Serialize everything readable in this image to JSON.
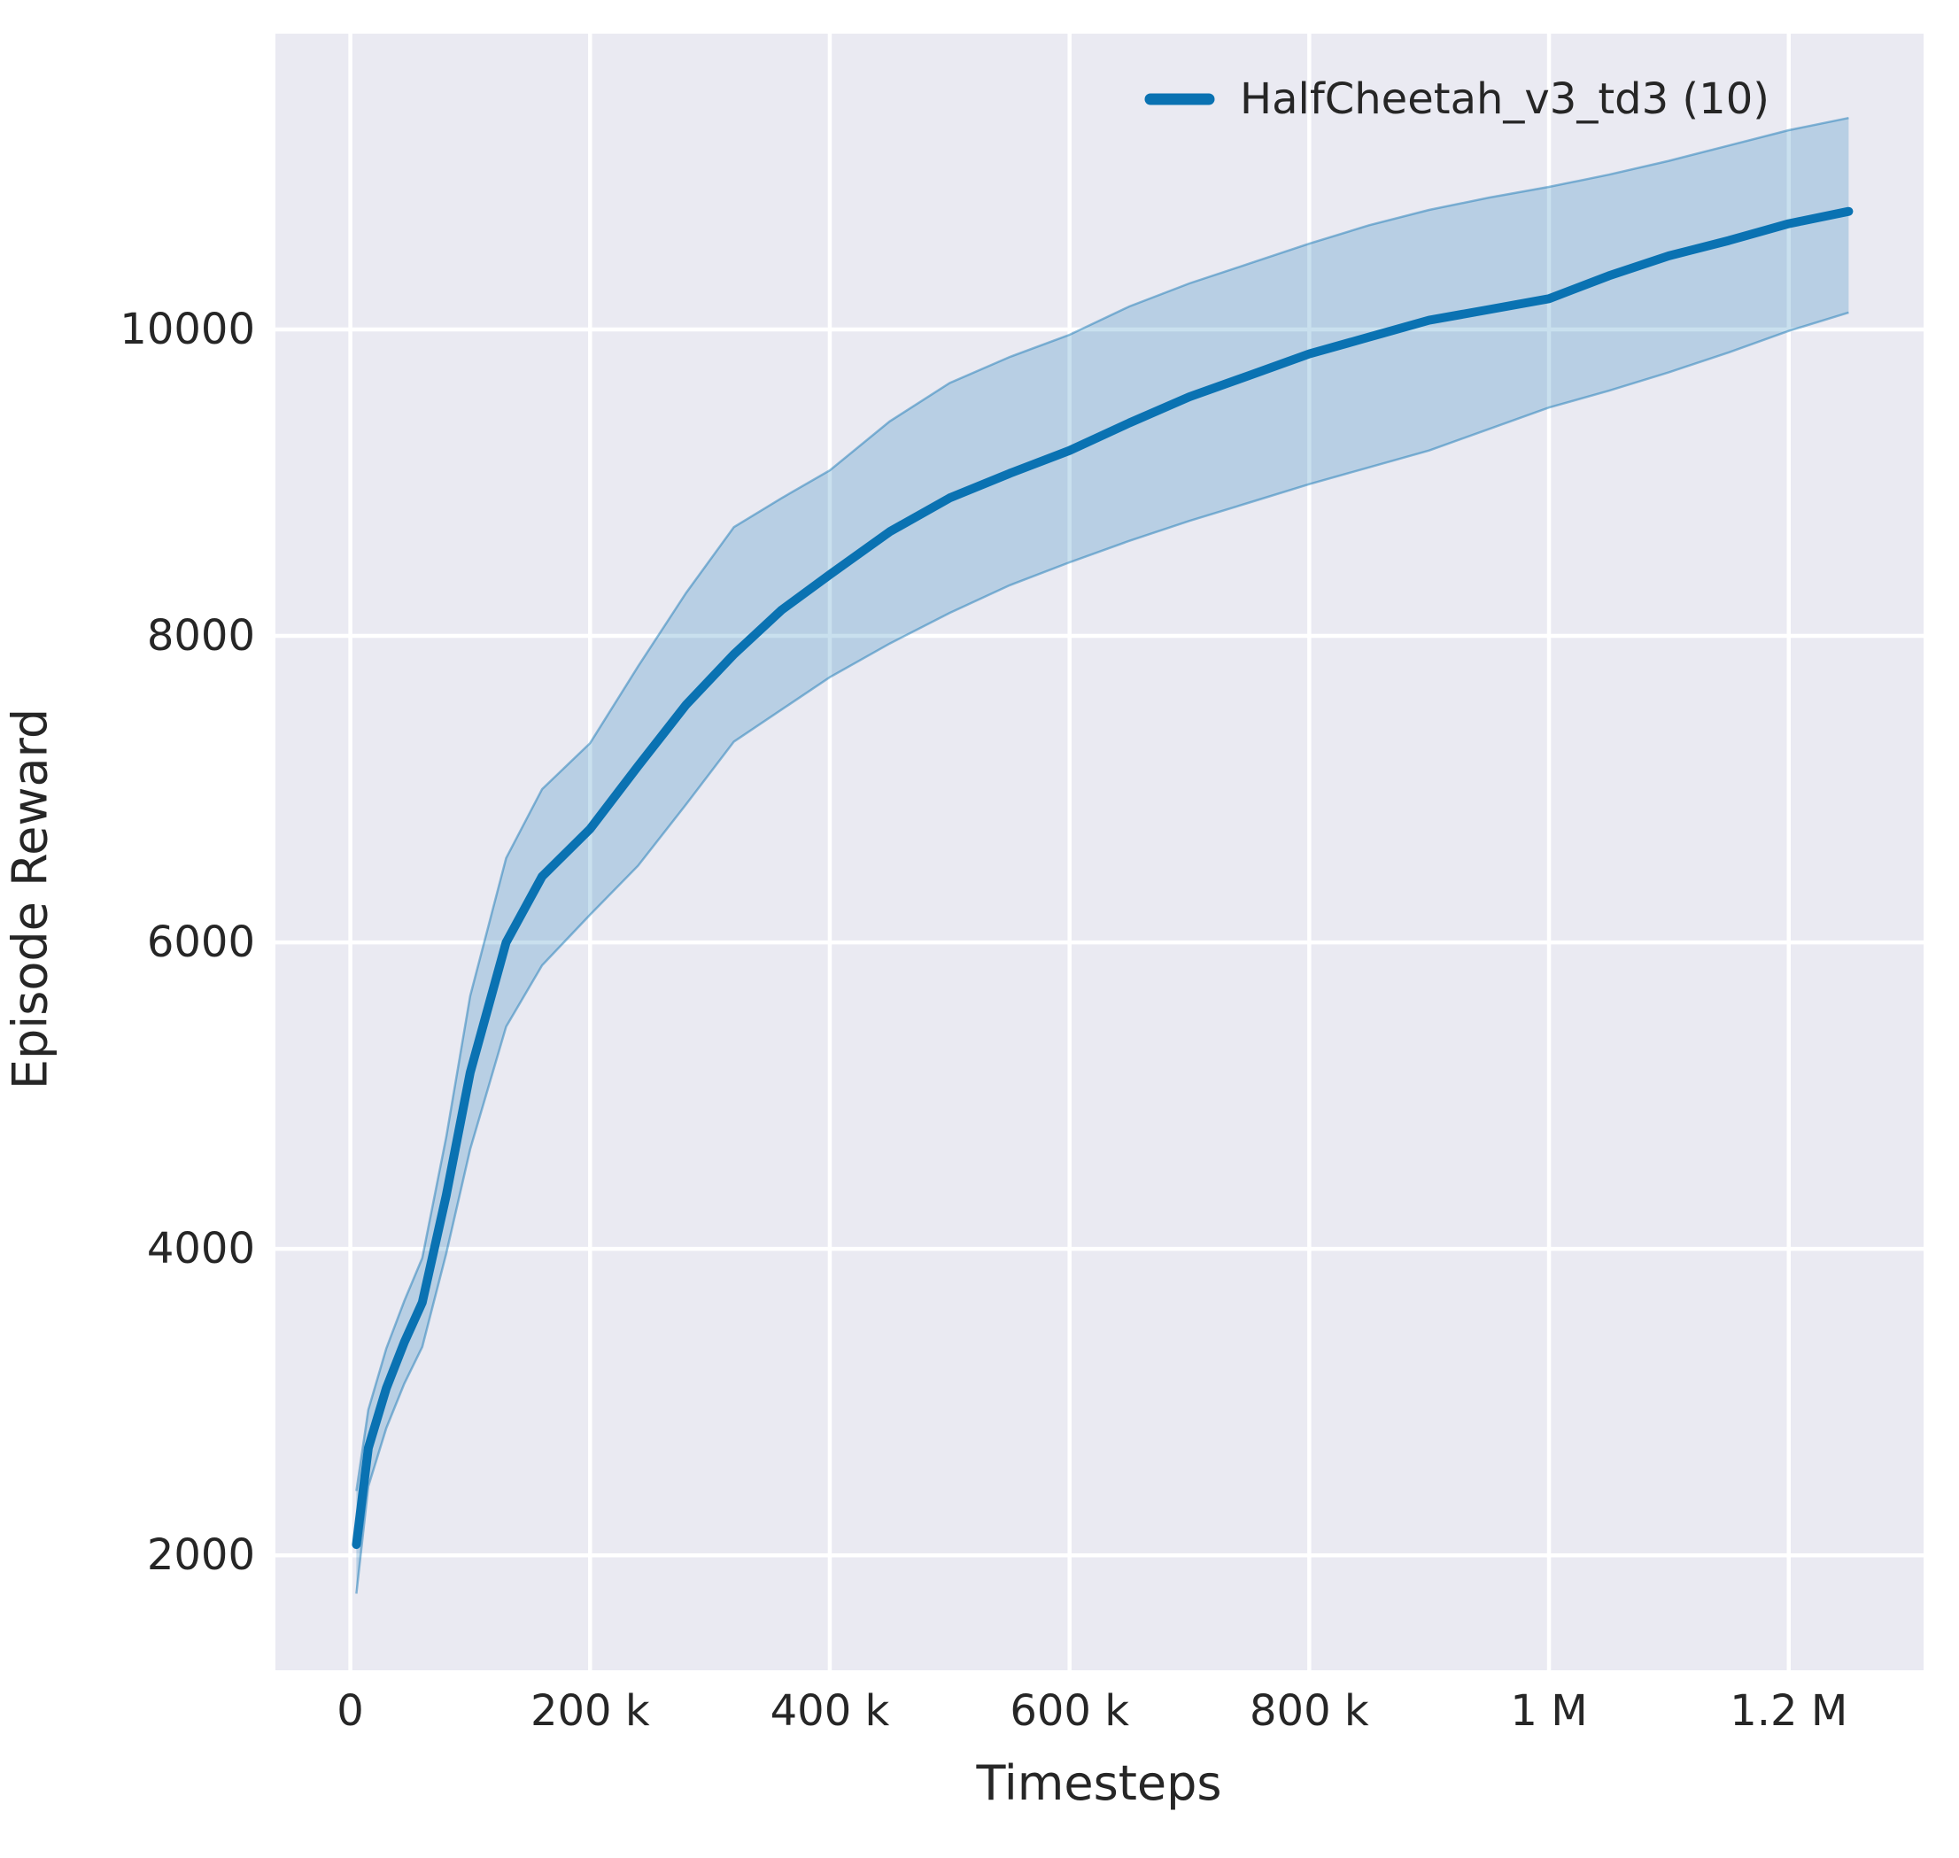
{
  "chart_data": {
    "type": "line",
    "title": "",
    "xlabel": "Timesteps",
    "ylabel": "Episode Reward",
    "grid": true,
    "legend_position": "upper right",
    "background_color": "#eaeaf2",
    "gridline_color": "#ffffff",
    "text_color": "#262626",
    "xlim": [
      -62500,
      1312500
    ],
    "ylim": [
      1250,
      11930
    ],
    "x_ticks": [
      {
        "value": 0,
        "label": "0"
      },
      {
        "value": 200000,
        "label": "200 k"
      },
      {
        "value": 400000,
        "label": "400 k"
      },
      {
        "value": 600000,
        "label": "600 k"
      },
      {
        "value": 800000,
        "label": "800 k"
      },
      {
        "value": 1000000,
        "label": "1 M"
      },
      {
        "value": 1200000,
        "label": "1.2 M"
      }
    ],
    "y_ticks": [
      {
        "value": 2000,
        "label": "2000"
      },
      {
        "value": 4000,
        "label": "4000"
      },
      {
        "value": 6000,
        "label": "6000"
      },
      {
        "value": 8000,
        "label": "8000"
      },
      {
        "value": 10000,
        "label": "10000"
      }
    ],
    "legend": [
      {
        "label": "HalfCheetah_v3_td3 (10)",
        "color": "#0a72b2"
      }
    ],
    "series": [
      {
        "name": "HalfCheetah_v3_td3 (10)",
        "color": "#0a72b2",
        "band_fill_opacity": 0.22,
        "x": [
          5000,
          15000,
          30000,
          45000,
          60000,
          80000,
          100000,
          130000,
          160000,
          200000,
          240000,
          280000,
          320000,
          360000,
          400000,
          450000,
          500000,
          550000,
          600000,
          650000,
          700000,
          750000,
          800000,
          850000,
          900000,
          950000,
          1000000,
          1050000,
          1100000,
          1150000,
          1200000,
          1250000
        ],
        "mean": [
          2070,
          2700,
          3090,
          3390,
          3650,
          4350,
          5150,
          6000,
          6430,
          6740,
          7150,
          7550,
          7880,
          8170,
          8400,
          8680,
          8900,
          9060,
          9210,
          9390,
          9560,
          9700,
          9840,
          9950,
          10060,
          10130,
          10200,
          10350,
          10480,
          10580,
          10690,
          10770
        ],
        "band_lower": [
          1750,
          2450,
          2830,
          3120,
          3360,
          3970,
          4650,
          5450,
          5850,
          6180,
          6500,
          6900,
          7310,
          7520,
          7730,
          7950,
          8150,
          8330,
          8480,
          8620,
          8750,
          8870,
          8990,
          9100,
          9210,
          9350,
          9490,
          9600,
          9720,
          9850,
          9990,
          10110
        ],
        "band_upper": [
          2420,
          2950,
          3350,
          3660,
          3940,
          4730,
          5650,
          6550,
          7000,
          7300,
          7800,
          8280,
          8710,
          8900,
          9080,
          9400,
          9650,
          9820,
          9965,
          10150,
          10300,
          10430,
          10560,
          10680,
          10780,
          10860,
          10930,
          11010,
          11100,
          11200,
          11300,
          11380
        ]
      }
    ]
  }
}
